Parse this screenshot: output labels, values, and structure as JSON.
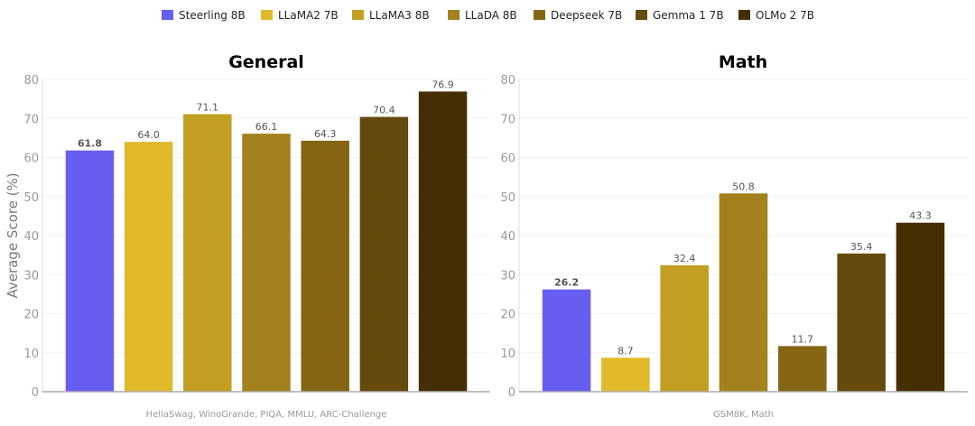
{
  "chart_data": [
    {
      "type": "bar",
      "title": "General",
      "xlabel": "HellaSwag, WinoGrande, PIQA, MMLU, ARC-Challenge",
      "ylabel": "Average Score (%)",
      "ylim": [
        0,
        80
      ],
      "yticks": [
        0,
        10,
        20,
        30,
        40,
        50,
        60,
        70,
        80
      ],
      "grid": true,
      "categories": [
        "Steerling 8B",
        "LLaMA2 7B",
        "LLaMA3 8B",
        "LLaDA 8B",
        "Deepseek 7B",
        "Gemma 1 7B",
        "OLMo 2 7B"
      ],
      "values": [
        61.8,
        64.0,
        71.1,
        66.1,
        64.3,
        70.4,
        76.9
      ],
      "labels": [
        "61.8",
        "64.0",
        "71.1",
        "66.1",
        "64.3",
        "70.4",
        "76.9"
      ]
    },
    {
      "type": "bar",
      "title": "Math",
      "xlabel": "GSM8K, Math",
      "ylabel": "",
      "ylim": [
        0,
        80
      ],
      "yticks": [
        0,
        10,
        20,
        30,
        40,
        50,
        60,
        70,
        80
      ],
      "grid": true,
      "categories": [
        "Steerling 8B",
        "LLaMA2 7B",
        "LLaMA3 8B",
        "LLaDA 8B",
        "Deepseek 7B",
        "Gemma 1 7B",
        "OLMo 2 7B"
      ],
      "values": [
        26.2,
        8.7,
        32.4,
        50.8,
        11.7,
        35.4,
        43.3
      ],
      "labels": [
        "26.2",
        "8.7",
        "32.4",
        "50.8",
        "11.7",
        "35.4",
        "43.3"
      ]
    }
  ],
  "legend": {
    "placement": "top-center",
    "entries": [
      {
        "name": "Steerling 8B",
        "color": "#675DF0"
      },
      {
        "name": "LLaMA2 7B",
        "color": "#E0B92A"
      },
      {
        "name": "LLaMA3 8B",
        "color": "#C29F22"
      },
      {
        "name": "LLaDA 8B",
        "color": "#A3811D"
      },
      {
        "name": "Deepseek 7B",
        "color": "#856514"
      },
      {
        "name": "Gemma 1 7B",
        "color": "#654A0D"
      },
      {
        "name": "OLMo 2 7B",
        "color": "#452E03"
      }
    ]
  },
  "highlight_color": "#675DF0"
}
